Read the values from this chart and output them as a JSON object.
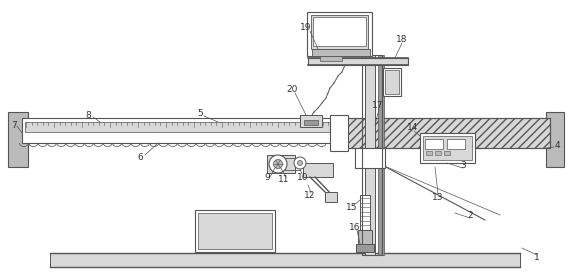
{
  "fig_width": 5.71,
  "fig_height": 2.79,
  "dpi": 100,
  "lc": "#555555",
  "bg": "#ffffff",
  "gray_light": "#d8d8d8",
  "gray_mid": "#bbbbbb",
  "gray_dark": "#999999"
}
